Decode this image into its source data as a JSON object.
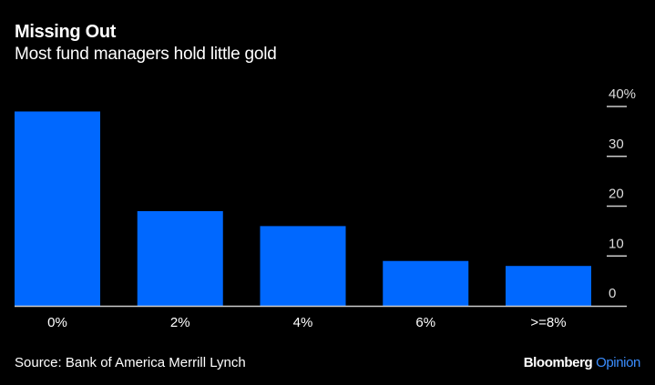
{
  "chart_data": {
    "type": "bar",
    "title": "Missing Out",
    "subtitle": "Most fund managers hold little gold",
    "categories": [
      "0%",
      "2%",
      "4%",
      "6%",
      ">=8%"
    ],
    "values": [
      39,
      19,
      16,
      9,
      8
    ],
    "xlabel": "",
    "ylabel": "",
    "ylim": [
      0,
      40
    ],
    "yticks": [
      0,
      10,
      20,
      30,
      40
    ],
    "ytick_labels": [
      "0",
      "10",
      "20",
      "30",
      "40%"
    ],
    "y_axis_side": "right",
    "grid": false,
    "bar_color": "#0068ff"
  },
  "footer": {
    "source": "Source: Bank of America Merrill Lynch",
    "brand": "Bloomberg",
    "brand_suffix": "Opinion"
  }
}
